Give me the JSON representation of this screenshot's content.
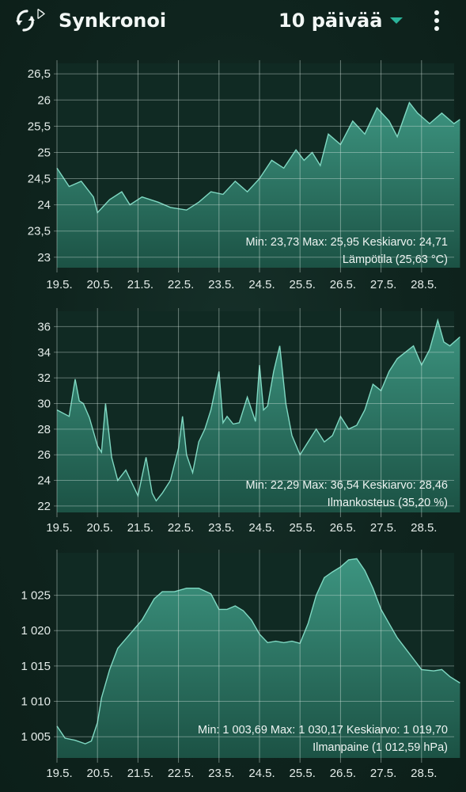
{
  "header": {
    "sync_icon": "sync-bluetooth-icon",
    "title": "Synkronoi",
    "range": "10 päivää",
    "range_icon": "caret-down-icon",
    "menu_icon": "more-vert-icon",
    "accent_color": "#2bb39a"
  },
  "chart_data": [
    {
      "type": "area",
      "categories": [
        "19.5.",
        "20.5.",
        "21.5.",
        "22.5.",
        "23.5.",
        "24.5.",
        "25.5.",
        "26.5.",
        "27.5.",
        "28.5."
      ],
      "y_ticks": [
        "23",
        "23,5",
        "24",
        "24,5",
        "25",
        "25,5",
        "26",
        "26,5"
      ],
      "ylim": [
        22.8,
        26.7
      ],
      "x": [
        0,
        0.3,
        0.6,
        0.9,
        1.0,
        1.3,
        1.6,
        1.8,
        2.1,
        2.5,
        2.8,
        3.2,
        3.5,
        3.8,
        4.1,
        4.4,
        4.7,
        5.0,
        5.3,
        5.6,
        5.9,
        6.1,
        6.3,
        6.5,
        6.7,
        7.0,
        7.3,
        7.6,
        7.9,
        8.2,
        8.4,
        8.7,
        8.9,
        9.2,
        9.5,
        9.8,
        9.95
      ],
      "series": [
        {
          "values": [
            24.7,
            24.35,
            24.45,
            24.15,
            23.85,
            24.1,
            24.25,
            24.0,
            24.15,
            24.05,
            23.95,
            23.9,
            24.05,
            24.25,
            24.2,
            24.45,
            24.25,
            24.5,
            24.85,
            24.7,
            25.05,
            24.85,
            25.0,
            24.75,
            25.35,
            25.15,
            25.6,
            25.35,
            25.85,
            25.6,
            25.3,
            25.95,
            25.75,
            25.55,
            25.75,
            25.55,
            25.63
          ]
        }
      ],
      "stats_text": "Min: 23,73 Max: 25,95 Keskiarvo: 24,71",
      "label": "Lämpötila (25,63 °C)"
    },
    {
      "type": "area",
      "categories": [
        "19.5.",
        "20.5.",
        "21.5.",
        "22.5.",
        "23.5.",
        "24.5.",
        "25.5.",
        "26.5.",
        "27.5.",
        "28.5."
      ],
      "y_ticks": [
        "22",
        "24",
        "26",
        "28",
        "30",
        "32",
        "34",
        "36"
      ],
      "ylim": [
        21.5,
        37.2
      ],
      "x": [
        0,
        0.3,
        0.45,
        0.55,
        0.65,
        0.8,
        1.0,
        1.1,
        1.2,
        1.35,
        1.5,
        1.7,
        2.0,
        2.2,
        2.35,
        2.45,
        2.6,
        2.8,
        3.0,
        3.1,
        3.2,
        3.35,
        3.5,
        3.65,
        3.8,
        4.0,
        4.1,
        4.2,
        4.35,
        4.5,
        4.7,
        4.9,
        5.0,
        5.1,
        5.2,
        5.35,
        5.5,
        5.65,
        5.8,
        6.0,
        6.2,
        6.4,
        6.6,
        6.8,
        7.0,
        7.2,
        7.4,
        7.6,
        7.8,
        8.0,
        8.2,
        8.4,
        8.6,
        8.8,
        9.0,
        9.2,
        9.4,
        9.55,
        9.7,
        9.95
      ],
      "series": [
        {
          "values": [
            29.5,
            29.0,
            31.9,
            30.2,
            30.0,
            28.9,
            26.7,
            26.2,
            30.0,
            25.8,
            24.0,
            24.8,
            22.8,
            25.8,
            23.0,
            22.4,
            23.0,
            24.0,
            26.5,
            29.0,
            26.0,
            24.6,
            27.0,
            28.0,
            29.5,
            32.5,
            28.5,
            29.0,
            28.4,
            28.5,
            30.5,
            28.6,
            33.0,
            29.5,
            29.8,
            32.5,
            34.5,
            30.0,
            27.5,
            26.0,
            27.0,
            28.0,
            27.0,
            27.5,
            29.0,
            28.0,
            28.3,
            29.5,
            31.5,
            31.0,
            32.5,
            33.5,
            34.0,
            34.5,
            33.0,
            34.2,
            36.5,
            34.8,
            34.5,
            35.2
          ]
        }
      ],
      "stats_text": "Min: 22,29 Max: 36,54 Keskiarvo: 28,46",
      "label": "Ilmankosteus (35,20 %)"
    },
    {
      "type": "area",
      "categories": [
        "19.5.",
        "20.5.",
        "21.5.",
        "22.5.",
        "23.5.",
        "24.5.",
        "25.5.",
        "26.5.",
        "27.5.",
        "28.5."
      ],
      "y_ticks": [
        "1 005",
        "1 010",
        "1 015",
        "1 020",
        "1 025"
      ],
      "ylim": [
        1002.0,
        1031.0
      ],
      "x": [
        0,
        0.2,
        0.45,
        0.7,
        0.85,
        1.0,
        1.1,
        1.3,
        1.5,
        1.8,
        2.1,
        2.4,
        2.6,
        2.9,
        3.2,
        3.5,
        3.8,
        4.0,
        4.2,
        4.4,
        4.6,
        4.8,
        5.0,
        5.2,
        5.4,
        5.6,
        5.8,
        6.0,
        6.2,
        6.4,
        6.6,
        6.8,
        7.0,
        7.2,
        7.4,
        7.6,
        7.8,
        8.0,
        8.2,
        8.4,
        8.6,
        8.8,
        9.0,
        9.3,
        9.5,
        9.7,
        9.95
      ],
      "series": [
        {
          "values": [
            1006.5,
            1004.8,
            1004.5,
            1004.0,
            1004.4,
            1007.0,
            1010.5,
            1014.5,
            1017.5,
            1019.5,
            1021.5,
            1024.5,
            1025.5,
            1025.5,
            1026.0,
            1026.0,
            1025.2,
            1023.0,
            1023.0,
            1023.5,
            1022.8,
            1021.5,
            1019.5,
            1018.3,
            1018.5,
            1018.3,
            1018.5,
            1018.2,
            1021.0,
            1025.0,
            1027.5,
            1028.3,
            1029.0,
            1030.0,
            1030.17,
            1028.5,
            1026.0,
            1023.0,
            1021.0,
            1019.0,
            1017.5,
            1016.0,
            1014.5,
            1014.3,
            1014.5,
            1013.5,
            1012.59
          ]
        }
      ],
      "stats_text": "Min: 1 003,69 Max: 1 030,17 Keskiarvo: 1 019,70",
      "label": "Ilmanpaine (1 012,59 hPa)"
    }
  ]
}
